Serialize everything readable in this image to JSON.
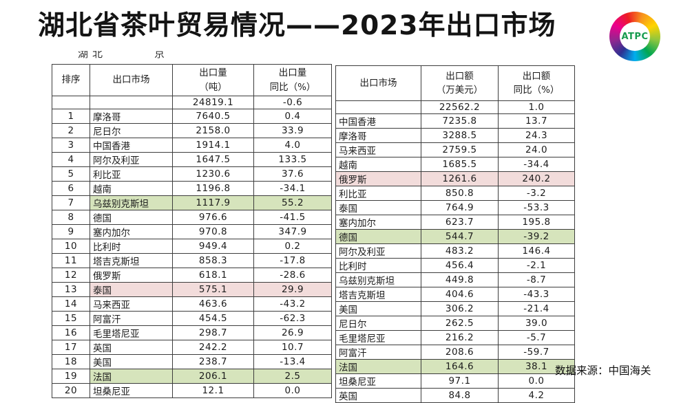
{
  "title": "湖北省茶叶贸易情况——2023年出口市场",
  "logo": {
    "text": "ATPC",
    "text_color": "#169b4e",
    "ring_colors": [
      "#ed1c24",
      "#f7941d",
      "#ffd400",
      "#8cc63f",
      "#00a651",
      "#00aeef",
      "#2e3192",
      "#92278f",
      "#ec008c",
      "#ed1c24"
    ]
  },
  "clipped_fragments": {
    "first": "湖北",
    "second": "京"
  },
  "source_note": "数据来源：中国海关",
  "colors": {
    "highlight_green": "#d6e4bc",
    "highlight_pink": "#f2dcdb",
    "border": "#3c3c3c"
  },
  "left_table": {
    "headers": {
      "rank": "排序",
      "market": "出口市场",
      "value": "出口量\n（吨）",
      "yoy": "出口量\n同比（%）"
    },
    "rows": [
      {
        "rank": "",
        "market": "",
        "value": "24819.1",
        "yoy": "-0.6",
        "hl": ""
      },
      {
        "rank": "1",
        "market": "摩洛哥",
        "value": "7640.5",
        "yoy": "0.4",
        "hl": ""
      },
      {
        "rank": "2",
        "market": "尼日尔",
        "value": "2158.0",
        "yoy": "33.9",
        "hl": ""
      },
      {
        "rank": "3",
        "market": "中国香港",
        "value": "1914.1",
        "yoy": "4.0",
        "hl": ""
      },
      {
        "rank": "4",
        "market": "阿尔及利亚",
        "value": "1647.5",
        "yoy": "133.5",
        "hl": ""
      },
      {
        "rank": "5",
        "market": "利比亚",
        "value": "1230.6",
        "yoy": "37.6",
        "hl": ""
      },
      {
        "rank": "6",
        "market": "越南",
        "value": "1196.8",
        "yoy": "-34.1",
        "hl": ""
      },
      {
        "rank": "7",
        "market": "乌兹别克斯坦",
        "value": "1117.9",
        "yoy": "55.2",
        "hl": "green"
      },
      {
        "rank": "8",
        "market": "德国",
        "value": "976.6",
        "yoy": "-41.5",
        "hl": ""
      },
      {
        "rank": "9",
        "market": "塞内加尔",
        "value": "970.8",
        "yoy": "347.9",
        "hl": ""
      },
      {
        "rank": "10",
        "market": "比利时",
        "value": "949.4",
        "yoy": "0.2",
        "hl": ""
      },
      {
        "rank": "11",
        "market": "塔吉克斯坦",
        "value": "858.3",
        "yoy": "-17.8",
        "hl": ""
      },
      {
        "rank": "12",
        "market": "俄罗斯",
        "value": "618.1",
        "yoy": "-28.6",
        "hl": ""
      },
      {
        "rank": "13",
        "market": "泰国",
        "value": "575.1",
        "yoy": "29.9",
        "hl": "pink"
      },
      {
        "rank": "14",
        "market": "马来西亚",
        "value": "463.6",
        "yoy": "-43.2",
        "hl": ""
      },
      {
        "rank": "15",
        "market": "阿富汗",
        "value": "454.5",
        "yoy": "-62.3",
        "hl": ""
      },
      {
        "rank": "16",
        "market": "毛里塔尼亚",
        "value": "298.7",
        "yoy": "26.9",
        "hl": ""
      },
      {
        "rank": "17",
        "market": "英国",
        "value": "242.2",
        "yoy": "10.7",
        "hl": ""
      },
      {
        "rank": "18",
        "market": "美国",
        "value": "238.7",
        "yoy": "-13.4",
        "hl": ""
      },
      {
        "rank": "19",
        "market": "法国",
        "value": "206.1",
        "yoy": "2.5",
        "hl": "green"
      },
      {
        "rank": "20",
        "market": "坦桑尼亚",
        "value": "12.1",
        "yoy": "0.0",
        "hl": ""
      }
    ]
  },
  "right_table": {
    "headers": {
      "market": "出口市场",
      "value": "出口额\n（万美元）",
      "yoy": "出口额\n同比（%）"
    },
    "rows": [
      {
        "market": "",
        "value": "22562.2",
        "yoy": "1.0",
        "hl": ""
      },
      {
        "market": "中国香港",
        "value": "7235.8",
        "yoy": "13.7",
        "hl": ""
      },
      {
        "market": "摩洛哥",
        "value": "3288.5",
        "yoy": "24.3",
        "hl": ""
      },
      {
        "market": "马来西亚",
        "value": "2759.5",
        "yoy": "24.0",
        "hl": ""
      },
      {
        "market": "越南",
        "value": "1685.5",
        "yoy": "-34.4",
        "hl": ""
      },
      {
        "market": "俄罗斯",
        "value": "1261.6",
        "yoy": "240.2",
        "hl": "pink"
      },
      {
        "market": "利比亚",
        "value": "850.8",
        "yoy": "-3.2",
        "hl": ""
      },
      {
        "market": "泰国",
        "value": "764.9",
        "yoy": "-53.3",
        "hl": ""
      },
      {
        "market": "塞内加尔",
        "value": "623.7",
        "yoy": "195.8",
        "hl": ""
      },
      {
        "market": "德国",
        "value": "544.7",
        "yoy": "-39.2",
        "hl": "green"
      },
      {
        "market": "阿尔及利亚",
        "value": "483.2",
        "yoy": "146.4",
        "hl": ""
      },
      {
        "market": "比利时",
        "value": "456.4",
        "yoy": "-2.1",
        "hl": ""
      },
      {
        "market": "乌兹别克斯坦",
        "value": "449.8",
        "yoy": "-8.7",
        "hl": ""
      },
      {
        "market": "塔吉克斯坦",
        "value": "404.6",
        "yoy": "-43.3",
        "hl": ""
      },
      {
        "market": "美国",
        "value": "306.2",
        "yoy": "-21.4",
        "hl": ""
      },
      {
        "market": "尼日尔",
        "value": "262.5",
        "yoy": "39.0",
        "hl": ""
      },
      {
        "market": "毛里塔尼亚",
        "value": "216.2",
        "yoy": "-5.7",
        "hl": ""
      },
      {
        "market": "阿富汗",
        "value": "208.6",
        "yoy": "-59.7",
        "hl": ""
      },
      {
        "market": "法国",
        "value": "164.6",
        "yoy": "38.1",
        "hl": "green"
      },
      {
        "market": "坦桑尼亚",
        "value": "97.1",
        "yoy": "0.0",
        "hl": ""
      },
      {
        "market": "英国",
        "value": "84.8",
        "yoy": "4.2",
        "hl": ""
      }
    ]
  }
}
